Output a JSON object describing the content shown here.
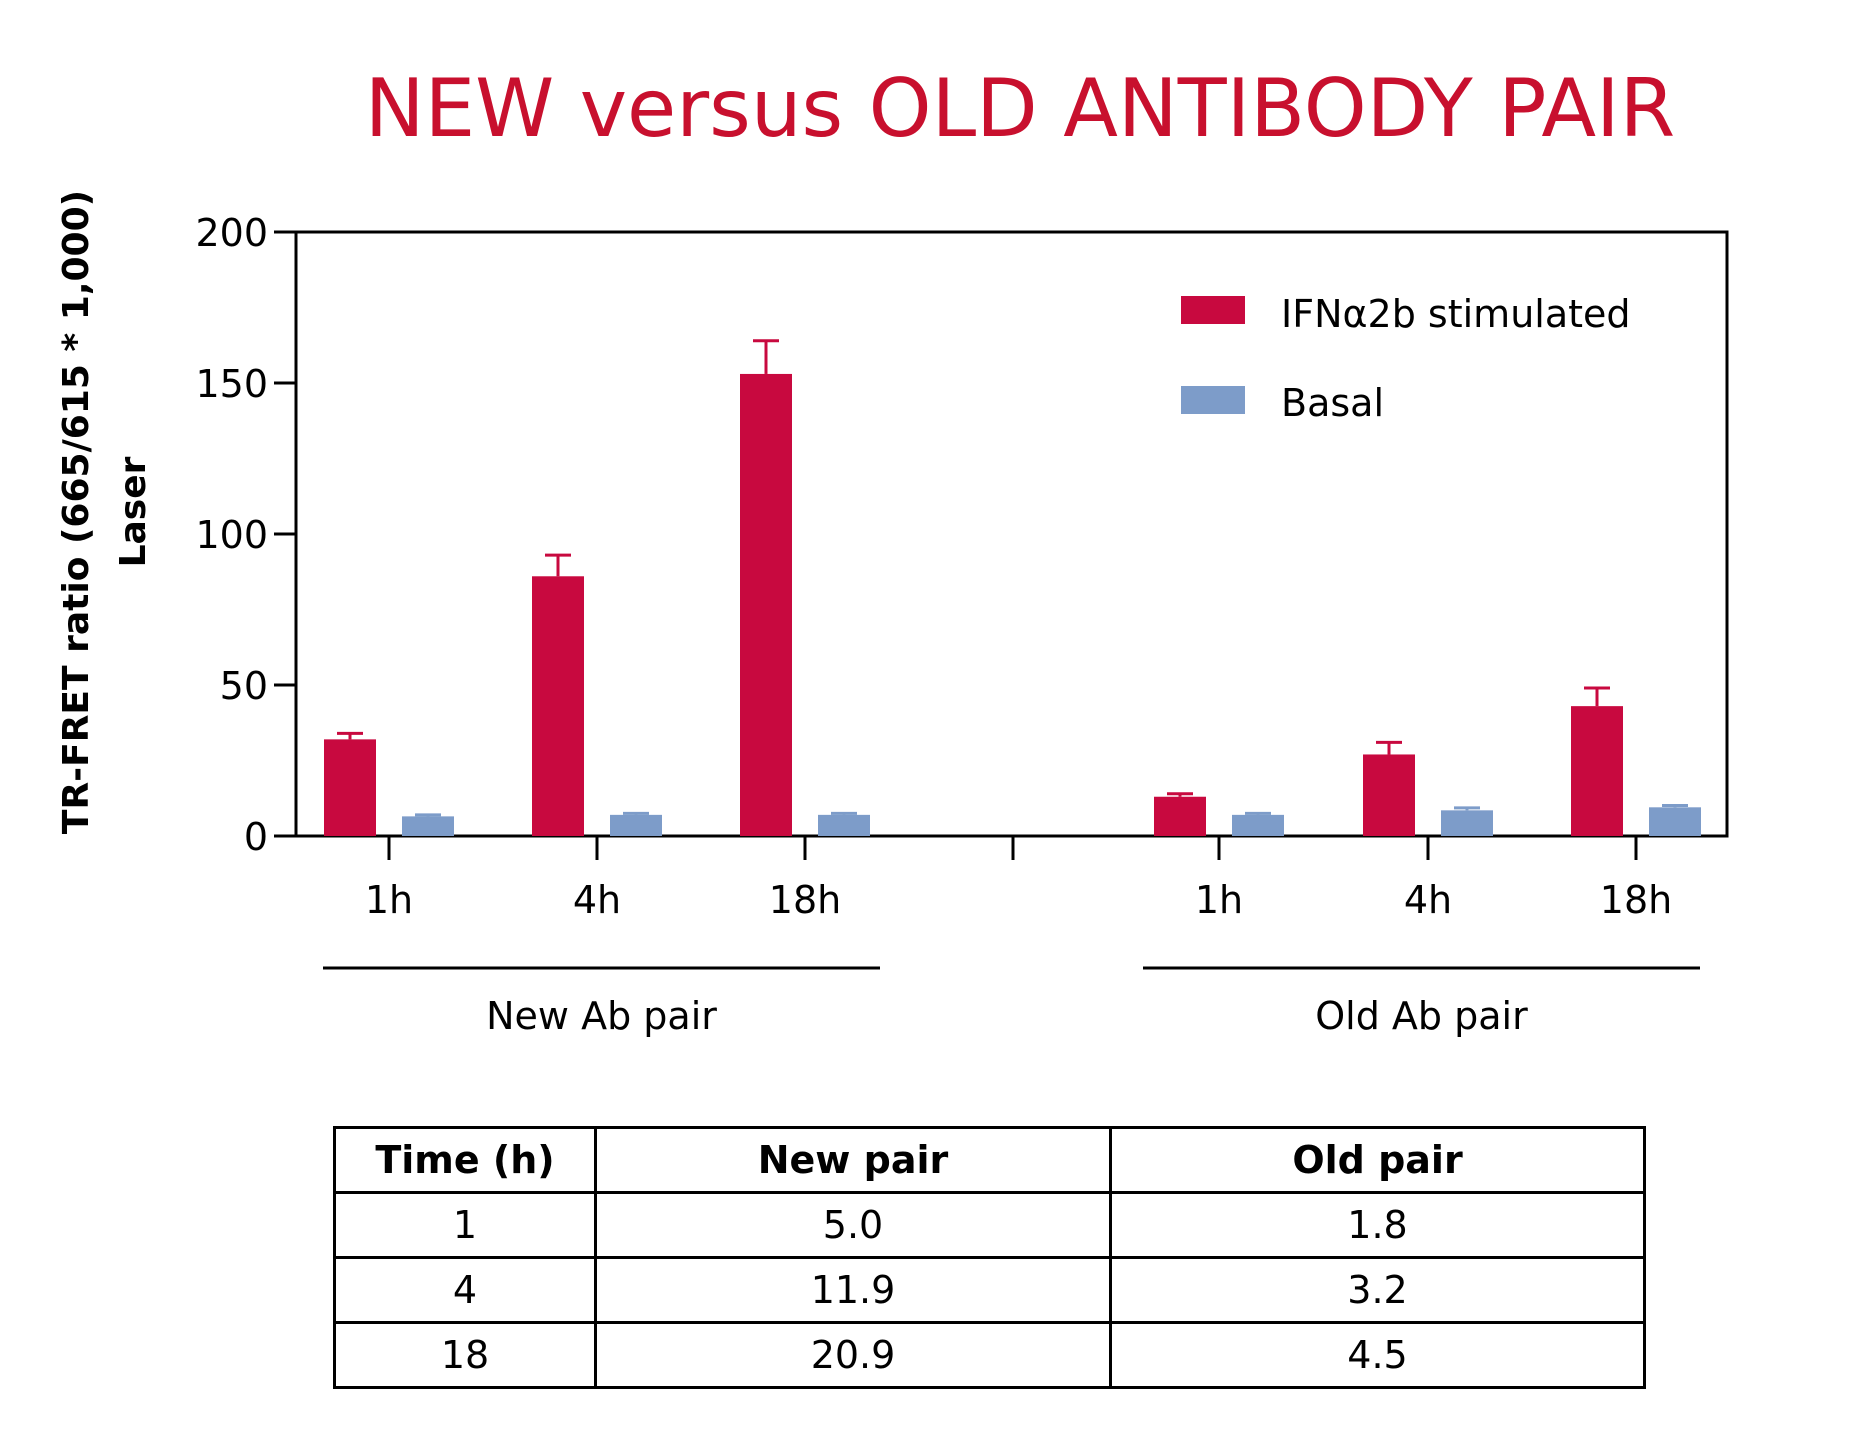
{
  "title": "NEW versus OLD ANTIBODY PAIR",
  "colors": {
    "title": "#c8102e",
    "stimulated": "#c8093f",
    "basal": "#7d9cc9"
  },
  "chart_data": {
    "type": "bar",
    "title": "NEW versus OLD ANTIBODY PAIR",
    "ylabel_lines": [
      "TR-FRET ratio (665/615 * 1,000)",
      "Laser"
    ],
    "ylim": [
      0,
      200
    ],
    "yticks": [
      "0",
      "50",
      "100",
      "150",
      "200"
    ],
    "groups": [
      {
        "label": "New Ab pair",
        "categories": [
          "1h",
          "4h",
          "18h"
        ]
      },
      {
        "label": "Old Ab pair",
        "categories": [
          "1h",
          "4h",
          "18h"
        ]
      }
    ],
    "series": [
      {
        "name": "IFNα2b stimulated",
        "values": [
          32,
          86,
          153,
          13,
          27,
          43
        ],
        "errors": [
          2,
          7,
          11,
          1,
          4,
          6
        ]
      },
      {
        "name": "Basal",
        "values": [
          6.5,
          7,
          7,
          7,
          8.5,
          9.5
        ],
        "errors": [
          0.5,
          0.5,
          0.5,
          0.5,
          0.8,
          0.6
        ]
      }
    ],
    "legend_position": "top-right",
    "grid": false
  },
  "table": {
    "headers": [
      "Time (h)",
      "New pair",
      "Old pair"
    ],
    "rows": [
      [
        "1",
        "5.0",
        "1.8"
      ],
      [
        "4",
        "11.9",
        "3.2"
      ],
      [
        "18",
        "20.9",
        "4.5"
      ]
    ]
  }
}
